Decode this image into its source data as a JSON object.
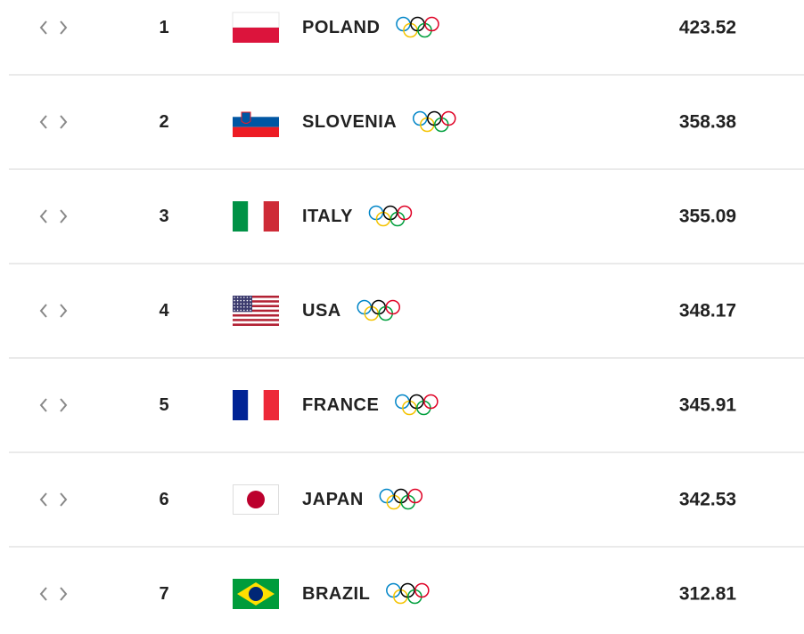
{
  "table": {
    "rows": [
      {
        "rank": 1,
        "country": "POLAND",
        "points": 423.52
      },
      {
        "rank": 2,
        "country": "SLOVENIA",
        "points": 358.38
      },
      {
        "rank": 3,
        "country": "ITALY",
        "points": 355.09
      },
      {
        "rank": 4,
        "country": "USA",
        "points": 348.17
      },
      {
        "rank": 5,
        "country": "FRANCE",
        "points": 345.91
      },
      {
        "rank": 6,
        "country": "JAPAN",
        "points": 342.53
      },
      {
        "rank": 7,
        "country": "BRAZIL",
        "points": 312.81
      }
    ]
  }
}
